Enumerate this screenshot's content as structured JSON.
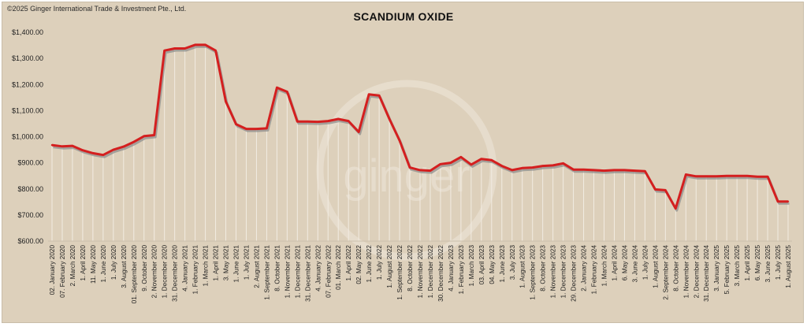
{
  "copyright": "©2025 Ginger International Trade & Investment Pte., Ltd.",
  "watermark": "ginger",
  "colors": {
    "background": "#ddd0bb",
    "line": "#d41f1f",
    "shadow": "#8a8a8a",
    "gridline": "#f2ece2"
  },
  "chart_data": {
    "type": "line",
    "title": "SCANDIUM OXIDE",
    "xlabel": "",
    "ylabel": "",
    "ylim": [
      600,
      1400
    ],
    "yticks": [
      "$600.00",
      "$700.00",
      "$800.00",
      "$900.00",
      "$1,000.00",
      "$1,100.00",
      "$1,200.00",
      "$1,300.00",
      "$1,400.00"
    ],
    "grid": "vertical drop lines",
    "legend": "none",
    "categories": [
      "02. January 2020",
      "07. February 2020",
      "2. March 2020",
      "1. April 2020",
      "11. May 2020",
      "1. June 2020",
      "1. July 2020",
      "3. August 2020",
      "01. September 2020",
      "9. October 2020",
      "2. November 2020",
      "1. December 2020",
      "31. December 2020",
      "4. January 2021",
      "1. February 2021",
      "1. March 2021",
      "1. April 2021",
      "3. May 2021",
      "1. June 2021",
      "1. July 2021",
      "2. August 2021",
      "1. September 2021",
      "8. October 2021",
      "1. November 2021",
      "1. December 2021",
      "31. December 2021",
      "4. January 2022",
      "07. February 2022",
      "01. March 2022",
      "1. April 2022",
      "02. May 2022",
      "1. June 2022",
      "1. July 2022",
      "1. August 2022",
      "1. September 2022",
      "8. October 2022",
      "1. November 2022",
      "1. December 2022",
      "30. December 2022",
      "4. January 2023",
      "1. February 2023",
      "1. March 2023",
      "03. April 2023",
      "04. May 2023",
      "1. June 2023",
      "3. July 2023",
      "1. August 2023",
      "1. September 2023",
      "8. October 2023",
      "1. November 2023",
      "1. December 2023",
      "29. December 2023",
      "2. January 2024",
      "1. February 2024",
      "1. March 2024",
      "1. April 2024",
      "6. May 2024",
      "3. June 2024",
      "1. July 2024",
      "1. August 2024",
      "2. September 2024",
      "8. October 2024",
      "1. November 2024",
      "2. December 2024",
      "31. December 2024",
      "3. January 2025",
      "5. February 2025",
      "3. March 2025",
      "1. April 2025",
      "6. May 2025",
      "3. June 2025",
      "1. July 2025",
      "1. August 2025"
    ],
    "series": [
      {
        "values": [
          968,
          963,
          965,
          948,
          937,
          930,
          950,
          962,
          980,
          1002,
          1006,
          1330,
          1338,
          1338,
          1352,
          1352,
          1330,
          1135,
          1048,
          1030,
          1030,
          1032,
          1188,
          1172,
          1058,
          1058,
          1057,
          1060,
          1068,
          1060,
          1018,
          1162,
          1158,
          1068,
          985,
          882,
          872,
          870,
          895,
          900,
          922,
          893,
          915,
          910,
          888,
          872,
          880,
          882,
          888,
          890,
          898,
          874,
          874,
          872,
          870,
          872,
          872,
          870,
          868,
          798,
          795,
          725,
          855,
          848,
          848,
          848,
          850,
          850,
          850,
          847,
          847,
          752,
          752
        ]
      }
    ]
  }
}
